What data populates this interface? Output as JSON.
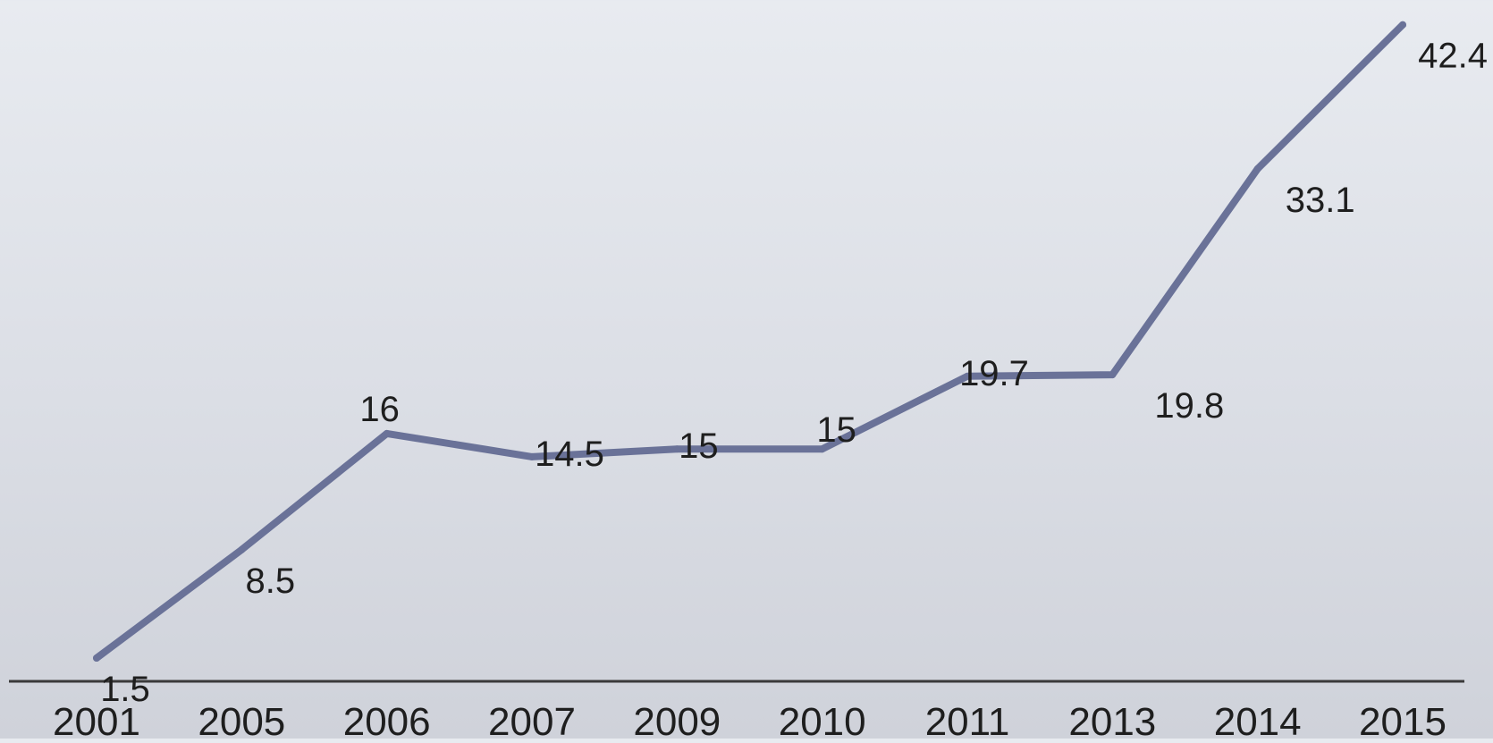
{
  "chart_data": {
    "type": "line",
    "categories": [
      "2001",
      "2005",
      "2006",
      "2007",
      "2009",
      "2010",
      "2011",
      "2013",
      "2014",
      "2015"
    ],
    "series": [
      {
        "values": [
          1.5,
          8.5,
          16,
          14.5,
          15,
          15,
          19.7,
          19.8,
          33.1,
          42.4
        ],
        "data_labels": [
          "1.5",
          "8.5",
          "16",
          "14.5",
          "15",
          "15",
          "19.7",
          "19.8",
          "33.1",
          "42.4"
        ],
        "color": "#6a7298"
      }
    ],
    "title": "",
    "xlabel": "",
    "ylabel": "",
    "ylim": [
      0,
      44
    ],
    "grid": false,
    "legend": "none",
    "axis_color": "#3a3a3a",
    "text_color": "#1e1e1e"
  }
}
